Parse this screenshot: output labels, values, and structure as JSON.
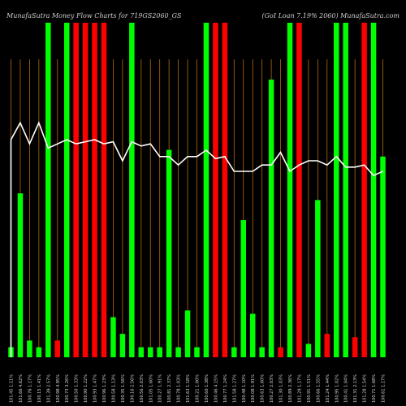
{
  "header": {
    "left_text": "MunafaSutra  Money Flow  Charts for 719GS2060_GS",
    "right_text": "(GoI Loan 7.19% 2060) MunafaSutra.com"
  },
  "colors": {
    "background": "#000000",
    "up_bar": "#00ff00",
    "down_bar": "#ff0000",
    "vertical_line": "#b4690e",
    "price_line": "#ffffff"
  },
  "chart_data": {
    "type": "bar",
    "title": "MunafaSutra  Money Flow  Charts for 719GS2060_GS",
    "categories": [
      "101.45 1.11%",
      "101.66 4.62%",
      "100.76 1.17%",
      "100.15 1.41%",
      "101.39 2.57%",
      "100.98 4.95%",
      "100.73 3.26%",
      "100.50 1.33%",
      "100.90 1.22%",
      "100.93 1.47%",
      "100.96 1.23%",
      "100.58 1.13%",
      "100.35 1.56%",
      "100.16 2.56%",
      "100.56 2.03%",
      "101.05 1.60%",
      "100.27 1.91%",
      "100.81 2.37%",
      "100.78 1.03%",
      "101.63 1.18%",
      "100.21 1.00%",
      "100.60 1.38%",
      "100.46 4.15%",
      "100.77 1.24%",
      "101.58 1.27%",
      "100.48 1.10%",
      "100.08 1.91%",
      "100.63 1.60%",
      "100.27 2.03%",
      "101.30 1.03%",
      "100.89 2.36%",
      "101.29 1.17%",
      "100.91 1.51%",
      "100.66 1.55%",
      "101.24 1.44%",
      "100.95 1.02%",
      "100.41 1.04%",
      "101.31 2.13%",
      "101.28 1.54%",
      "100.71 1.68%",
      "100.61 1.17%"
    ],
    "directions": [
      "up",
      "up",
      "up",
      "up",
      "up",
      "down",
      "up",
      "down",
      "down",
      "down",
      "down",
      "up",
      "up",
      "up",
      "up",
      "up",
      "up",
      "up",
      "up",
      "up",
      "up",
      "up",
      "down",
      "down",
      "up",
      "up",
      "up",
      "up",
      "up",
      "down",
      "up",
      "down",
      "up",
      "up",
      "down",
      "up",
      "up",
      "down",
      "down",
      "up",
      "up"
    ],
    "values": [
      3,
      49,
      5,
      3,
      100,
      5,
      100,
      100,
      100,
      100,
      100,
      12,
      7,
      100,
      3,
      3,
      3,
      62,
      3,
      14,
      3,
      100,
      100,
      100,
      3,
      41,
      13,
      3,
      83,
      3,
      100,
      100,
      4,
      47,
      7,
      100,
      100,
      6,
      100,
      100,
      60
    ],
    "price_line": [
      270,
      278,
      268,
      278,
      266,
      268,
      270,
      268,
      269,
      270,
      268,
      269,
      260,
      269,
      267,
      268,
      262,
      262,
      258,
      262,
      262,
      265,
      261,
      262,
      255,
      255,
      255,
      258,
      258,
      264,
      255,
      258,
      260,
      260,
      258,
      262,
      257,
      257,
      258,
      253,
      255
    ],
    "ylim": [
      0,
      100
    ],
    "grid": true
  }
}
